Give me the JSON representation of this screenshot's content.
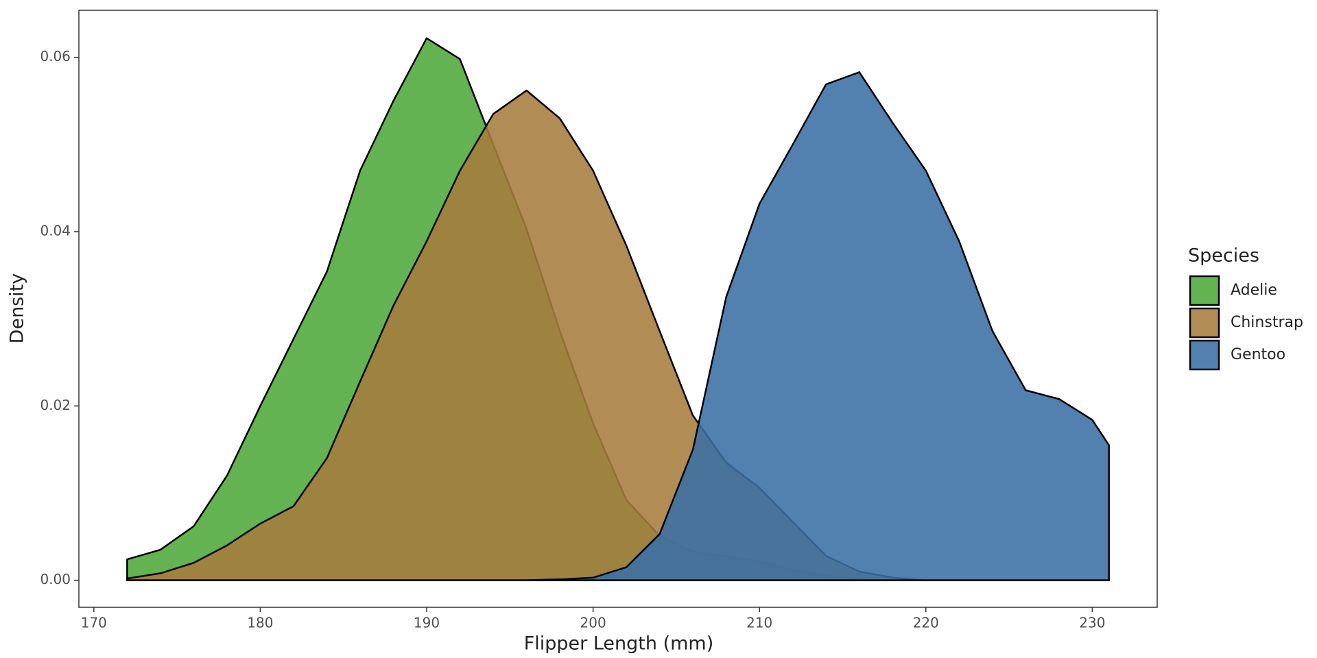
{
  "chart_data": {
    "type": "density",
    "x_label": "Flipper Length (mm)",
    "y_label": "Density",
    "legend_title": "Species",
    "x": [
      172,
      174,
      176,
      178,
      180,
      182,
      184,
      186,
      188,
      190,
      192,
      194,
      196,
      198,
      200,
      202,
      204,
      206,
      208,
      210,
      212,
      214,
      216,
      218,
      220,
      222,
      224,
      226,
      228,
      230,
      231
    ],
    "series": [
      {
        "name": "Adelie",
        "color": "#4fa83a",
        "values": [
          0.0024,
          0.0035,
          0.0062,
          0.012,
          0.02,
          0.0277,
          0.0354,
          0.047,
          0.055,
          0.0622,
          0.0598,
          0.05,
          0.0403,
          0.0286,
          0.018,
          0.0092,
          0.0051,
          0.0033,
          0.0027,
          0.0022,
          0.0012,
          0.0005,
          0.0002,
          0,
          0,
          0,
          0,
          0,
          0,
          0,
          0
        ]
      },
      {
        "name": "Chinstrap",
        "color": "#a67c3d",
        "values": [
          0.0002,
          0.0008,
          0.002,
          0.004,
          0.0065,
          0.0085,
          0.014,
          0.0228,
          0.0315,
          0.0389,
          0.047,
          0.0535,
          0.0562,
          0.053,
          0.047,
          0.0384,
          0.0286,
          0.0189,
          0.0135,
          0.0106,
          0.0067,
          0.0028,
          0.001,
          0.0003,
          0,
          0,
          0,
          0,
          0,
          0,
          0
        ]
      },
      {
        "name": "Gentoo",
        "color": "#3a6fa5",
        "values": [
          0,
          0,
          0,
          0,
          0,
          0,
          0,
          0,
          0,
          0,
          0,
          0,
          0,
          0.0001,
          0.0003,
          0.0015,
          0.0053,
          0.015,
          0.0325,
          0.0432,
          0.05,
          0.0569,
          0.0583,
          0.0525,
          0.047,
          0.0389,
          0.0286,
          0.0218,
          0.0208,
          0.0184,
          0.0155
        ]
      }
    ],
    "xlim": [
      169.1,
      233.9
    ],
    "xticks": [
      170,
      180,
      190,
      200,
      210,
      220,
      230
    ],
    "ylim": [
      -0.0031,
      0.0654
    ],
    "yticks": [
      {
        "value": 0,
        "label": "0.00"
      },
      {
        "value": 0.02,
        "label": "0.02"
      },
      {
        "value": 0.04,
        "label": "0.04"
      },
      {
        "value": 0.06,
        "label": "0.06"
      }
    ]
  }
}
